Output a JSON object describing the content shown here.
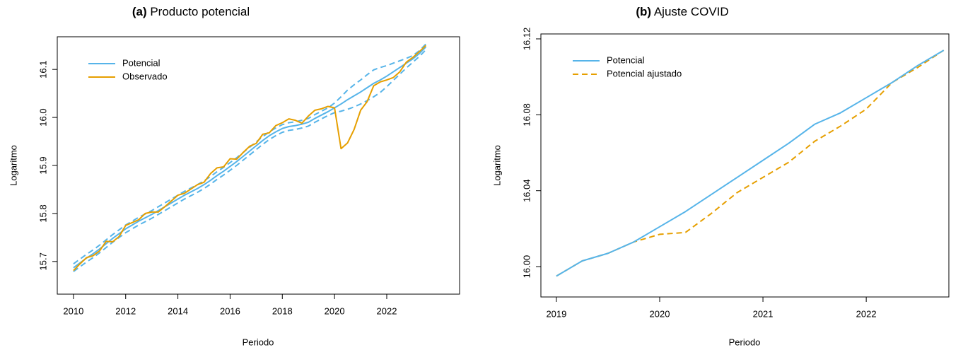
{
  "chart_data": [
    {
      "type": "line",
      "title_tag": "(a)",
      "title": "Producto potencial",
      "x_label": "Periodo",
      "y_label": "Logaritmo",
      "legend": "top-left",
      "x": [
        2010,
        2010.25,
        2010.5,
        2010.75,
        2011,
        2011.25,
        2011.5,
        2011.75,
        2012,
        2012.25,
        2012.5,
        2012.75,
        2013,
        2013.25,
        2013.5,
        2013.75,
        2014,
        2014.25,
        2014.5,
        2014.75,
        2015,
        2015.25,
        2015.5,
        2015.75,
        2016,
        2016.25,
        2016.5,
        2016.75,
        2017,
        2017.25,
        2017.5,
        2017.75,
        2018,
        2018.25,
        2018.5,
        2018.75,
        2019,
        2019.25,
        2019.5,
        2019.75,
        2020,
        2020.25,
        2020.5,
        2020.75,
        2021,
        2021.25,
        2021.5,
        2021.75,
        2022,
        2022.25,
        2022.5,
        2022.75,
        2023,
        2023.25,
        2023.5
      ],
      "series": [
        {
          "name": "Potencial",
          "color": "#56B4E9",
          "dash": false,
          "values": [
            15.687,
            15.697,
            15.707,
            15.716,
            15.726,
            15.737,
            15.748,
            15.758,
            15.768,
            15.776,
            15.784,
            15.791,
            15.798,
            15.806,
            15.814,
            15.822,
            15.83,
            15.838,
            15.845,
            15.852,
            15.86,
            15.869,
            15.879,
            15.888,
            15.898,
            15.908,
            15.919,
            15.93,
            15.941,
            15.952,
            15.962,
            15.97,
            15.977,
            15.981,
            15.983,
            15.986,
            15.99,
            15.998,
            16.005,
            16.012,
            16.02,
            16.028,
            16.037,
            16.045,
            16.053,
            16.062,
            16.071,
            16.078,
            16.086,
            16.095,
            16.104,
            16.113,
            16.122,
            16.133,
            16.147
          ]
        },
        {
          "name": "Observado",
          "color": "#E69F00",
          "dash": false,
          "values": [
            15.681,
            15.695,
            15.708,
            15.712,
            15.722,
            15.742,
            15.741,
            15.752,
            15.775,
            15.781,
            15.787,
            15.8,
            15.803,
            15.803,
            15.814,
            15.826,
            15.838,
            15.842,
            15.851,
            15.86,
            15.865,
            15.883,
            15.895,
            15.897,
            15.914,
            15.913,
            15.927,
            15.94,
            15.946,
            15.965,
            15.968,
            15.983,
            15.989,
            15.997,
            15.994,
            15.988,
            16.003,
            16.015,
            16.018,
            16.023,
            16.02,
            15.935,
            15.947,
            15.975,
            16.015,
            16.033,
            16.066,
            16.074,
            16.078,
            16.083,
            16.095,
            16.115,
            16.125,
            16.137,
            16.15
          ]
        },
        {
          "color": "#56B4E9",
          "dash": true,
          "values": [
            15.695,
            15.705,
            15.715,
            15.724,
            15.734,
            15.745,
            15.756,
            15.766,
            15.776,
            15.784,
            15.792,
            15.799,
            15.806,
            15.814,
            15.822,
            15.83,
            15.838,
            15.846,
            15.853,
            15.86,
            15.868,
            15.877,
            15.887,
            15.896,
            15.906,
            15.916,
            15.927,
            15.938,
            15.949,
            15.96,
            15.97,
            15.978,
            15.985,
            15.989,
            15.991,
            15.994,
            15.998,
            16.006,
            16.013,
            16.02,
            16.03,
            16.043,
            16.057,
            16.068,
            16.078,
            16.089,
            16.099,
            16.104,
            16.108,
            16.113,
            16.118,
            16.123,
            16.129,
            16.139,
            16.153
          ]
        },
        {
          "color": "#56B4E9",
          "dash": true,
          "values": [
            15.679,
            15.689,
            15.699,
            15.708,
            15.718,
            15.729,
            15.74,
            15.75,
            15.76,
            15.768,
            15.776,
            15.783,
            15.79,
            15.798,
            15.806,
            15.814,
            15.822,
            15.83,
            15.837,
            15.844,
            15.852,
            15.861,
            15.871,
            15.88,
            15.89,
            15.9,
            15.911,
            15.922,
            15.933,
            15.944,
            15.954,
            15.962,
            15.969,
            15.973,
            15.975,
            15.978,
            15.982,
            15.99,
            15.997,
            16.004,
            16.01,
            16.013,
            16.017,
            16.022,
            16.028,
            16.035,
            16.043,
            16.052,
            16.064,
            16.077,
            16.09,
            16.103,
            16.115,
            16.127,
            16.141
          ]
        }
      ],
      "xlim": [
        2009.38,
        2024.79
      ],
      "xticks": [
        2010,
        2012,
        2014,
        2016,
        2018,
        2020,
        2022
      ],
      "ylim": [
        15.632,
        16.168
      ],
      "yticks": [
        15.7,
        15.8,
        15.9,
        {
          "value": 16.0,
          "label": "16.0"
        },
        16.1
      ]
    },
    {
      "type": "line",
      "title_tag": "(b)",
      "title": "Ajuste COVID",
      "x_label": "Periodo",
      "y_label": "Logaritmo",
      "legend": "top-left",
      "x": [
        2019,
        2019.25,
        2019.5,
        2019.75,
        2020,
        2020.25,
        2020.5,
        2020.75,
        2021,
        2021.25,
        2021.5,
        2021.75,
        2022,
        2022.25,
        2022.5,
        2022.75
      ],
      "series": [
        {
          "name": "Potencial",
          "color": "#56B4E9",
          "dash": false,
          "values": [
            15.995,
            16.003,
            16.007,
            16.013,
            16.021,
            16.029,
            16.038,
            16.047,
            16.056,
            16.065,
            16.075,
            16.081,
            16.089,
            16.097,
            16.106,
            16.114
          ]
        },
        {
          "name": "Potencial ajustado",
          "color": "#E69F00",
          "dash": true,
          "values": [
            15.995,
            16.003,
            16.007,
            16.013,
            16.017,
            16.018,
            16.028,
            16.039,
            16.047,
            16.055,
            16.066,
            16.074,
            16.083,
            16.097,
            16.105,
            16.114
          ]
        }
      ],
      "xlim": [
        2018.85,
        2022.8
      ],
      "xticks": [
        2019,
        2020,
        2021,
        2022
      ],
      "ylim": [
        15.984,
        16.1226
      ],
      "yticks": [
        {
          "value": 16.0,
          "label": "16.00"
        },
        16.04,
        16.08,
        16.12
      ]
    }
  ]
}
